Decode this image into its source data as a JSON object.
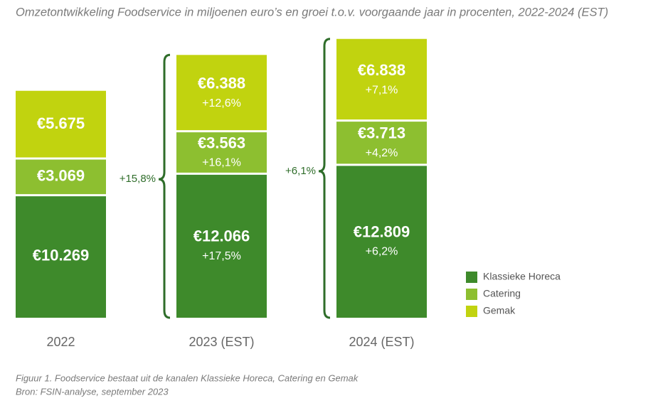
{
  "chart_data": {
    "type": "stacked_bar",
    "title": "Omzetontwikkeling Foodservice in miljoenen euro’s en groei t.o.v. voorgaande jaar in procenten, 2022-2024 (EST)",
    "categories": [
      "2022",
      "2023 (EST)",
      "2024 (EST)"
    ],
    "series": [
      {
        "name": "Klassieke Horeca",
        "color": "#3e8a2b",
        "values": [
          10269,
          12066,
          12809
        ],
        "value_labels": [
          "€10.269",
          "€12.066",
          "€12.809"
        ],
        "growth_labels": [
          null,
          "+17,5%",
          "+6,2%"
        ]
      },
      {
        "name": "Catering",
        "color": "#8dbf30",
        "values": [
          3069,
          3563,
          3713
        ],
        "value_labels": [
          "€3.069",
          "€3.563",
          "€3.713"
        ],
        "growth_labels": [
          null,
          "+16,1%",
          "+4,2%"
        ]
      },
      {
        "name": "Gemak",
        "color": "#c1d30f",
        "values": [
          5675,
          6388,
          6838
        ],
        "value_labels": [
          "€5.675",
          "€6.388",
          "€6.838"
        ],
        "growth_labels": [
          null,
          "+12,6%",
          "+7,1%"
        ]
      }
    ],
    "total_growth_labels": [
      null,
      "+15,8%",
      "+6,1%"
    ],
    "ylim": [
      0,
      24000
    ],
    "footnotes": [
      "Figuur 1. Foodservice bestaat uit de kanalen Klassieke Horeca, Catering en Gemak",
      "Bron: FSIN-analyse, september 2023"
    ]
  }
}
